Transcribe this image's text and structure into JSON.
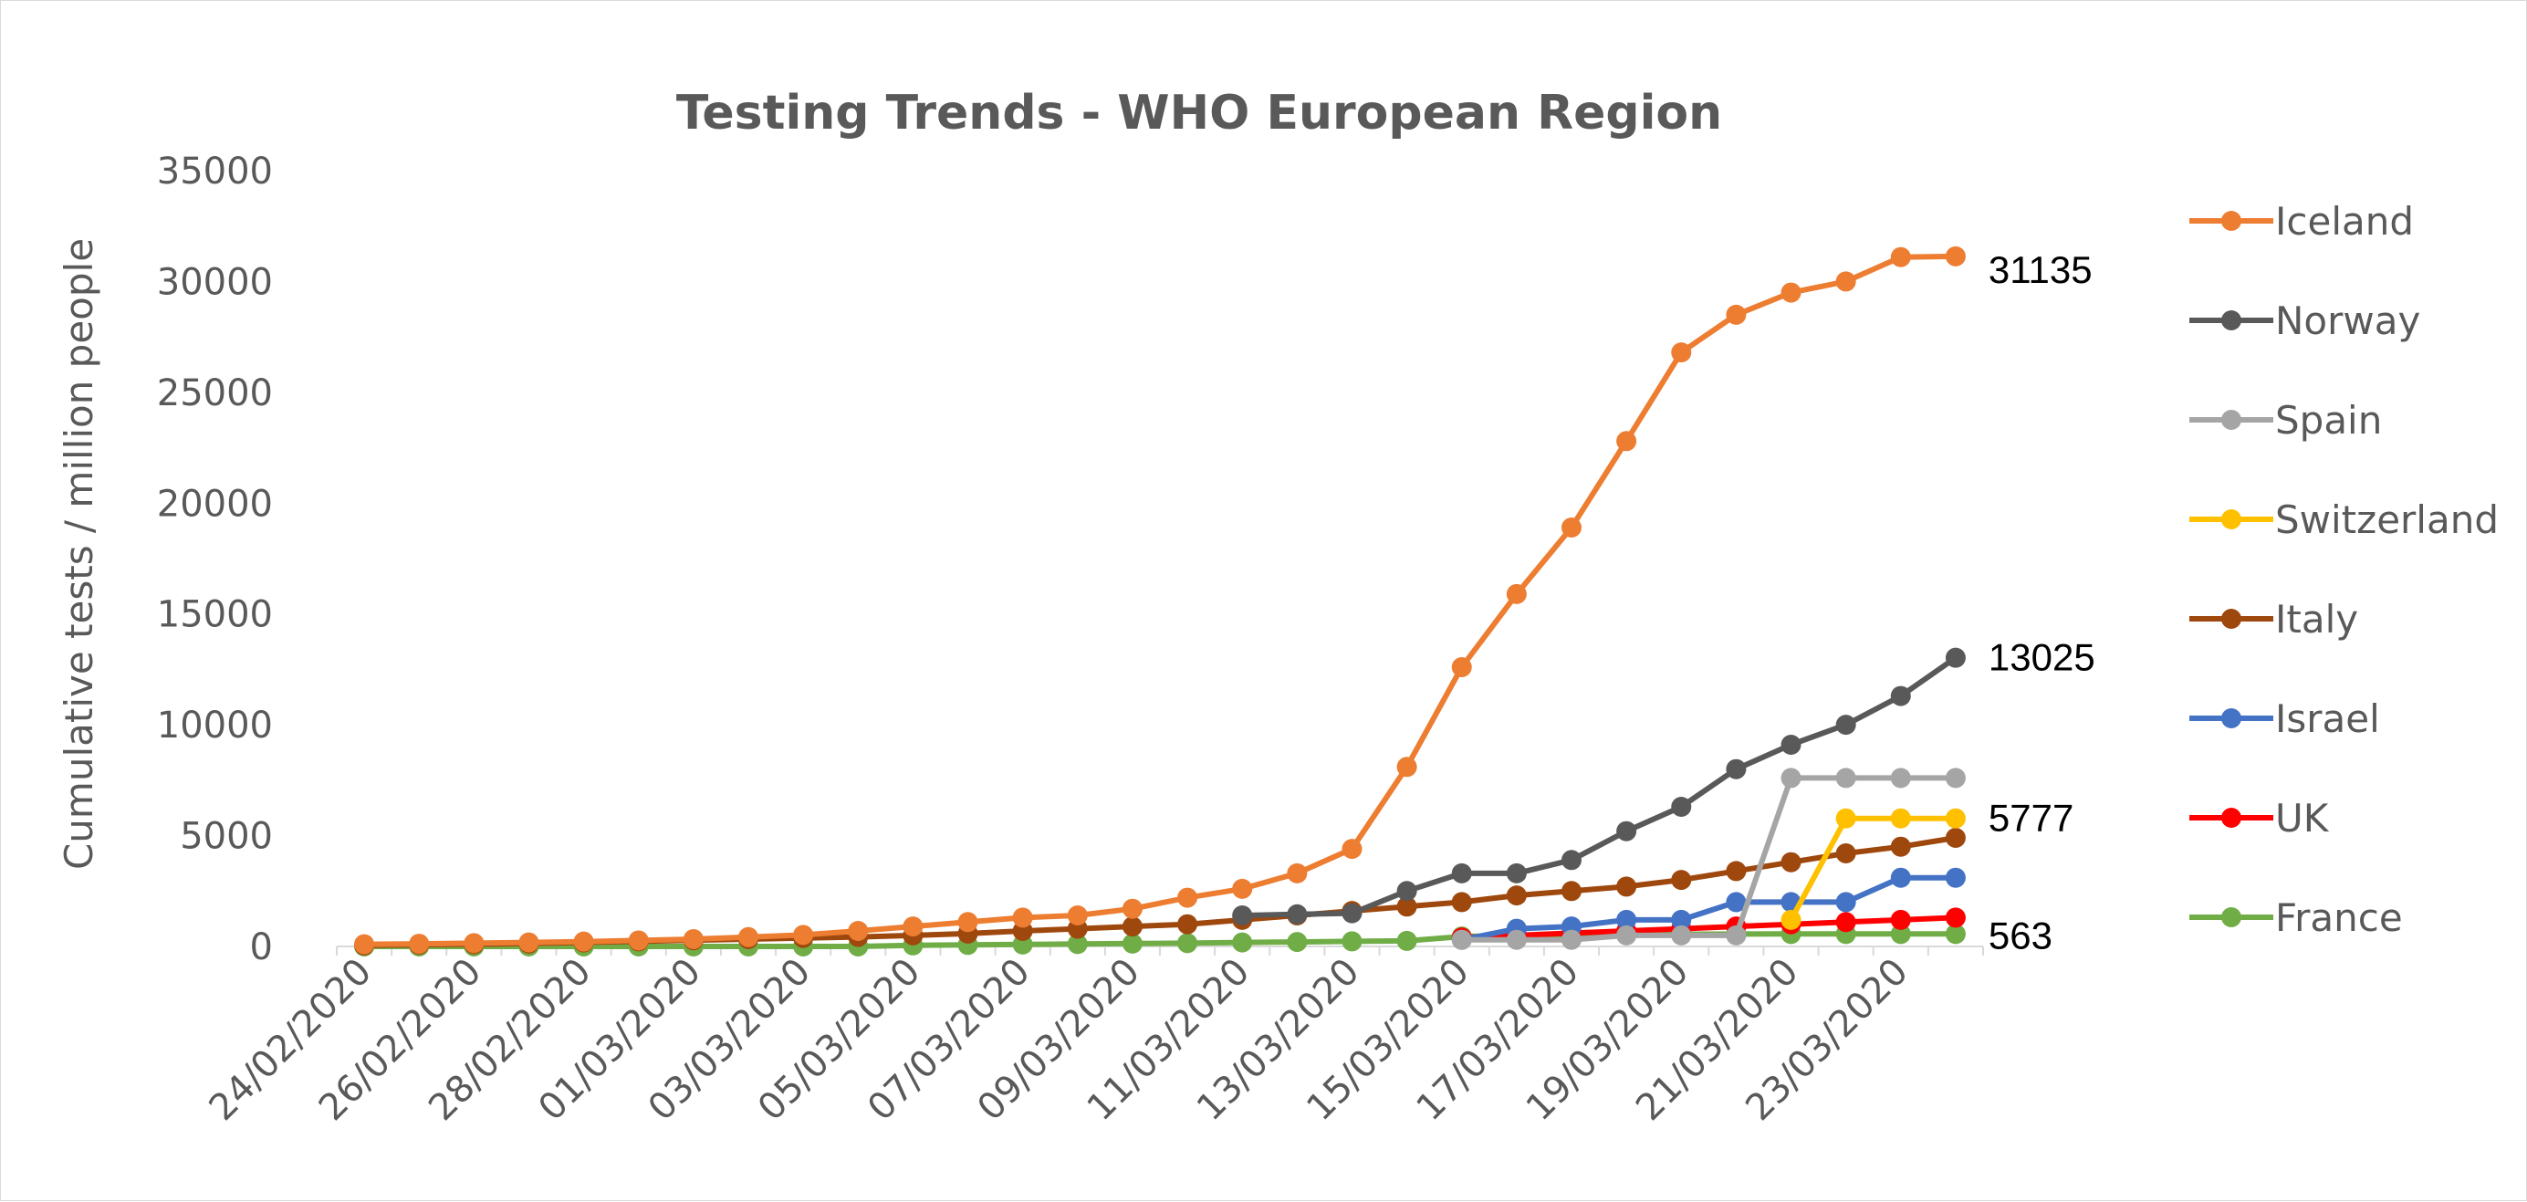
{
  "chart_data": {
    "type": "line",
    "title": "Testing Trends - WHO European Region",
    "ylabel": "Cumulative tests / million people",
    "xlabel": "",
    "ylim": [
      0,
      35000
    ],
    "yticks": [
      0,
      5000,
      10000,
      15000,
      20000,
      25000,
      30000,
      35000
    ],
    "grid": false,
    "legend_position": "right",
    "x": [
      "24/02/2020",
      "25/02/2020",
      "26/02/2020",
      "27/02/2020",
      "28/02/2020",
      "29/02/2020",
      "01/03/2020",
      "02/03/2020",
      "03/03/2020",
      "04/03/2020",
      "05/03/2020",
      "06/03/2020",
      "07/03/2020",
      "08/03/2020",
      "09/03/2020",
      "10/03/2020",
      "11/03/2020",
      "12/03/2020",
      "13/03/2020",
      "14/03/2020",
      "15/03/2020",
      "16/03/2020",
      "17/03/2020",
      "18/03/2020",
      "19/03/2020",
      "20/03/2020",
      "21/03/2020",
      "22/03/2020",
      "23/03/2020",
      "24/03/2020"
    ],
    "x_tick_labels": [
      "24/02/2020",
      "26/02/2020",
      "28/02/2020",
      "01/03/2020",
      "03/03/2020",
      "05/03/2020",
      "07/03/2020",
      "09/03/2020",
      "11/03/2020",
      "13/03/2020",
      "15/03/2020",
      "17/03/2020",
      "19/03/2020",
      "21/03/2020",
      "23/03/2020"
    ],
    "series": [
      {
        "name": "Iceland",
        "color": "#ED7D31",
        "values": [
          100,
          120,
          150,
          180,
          220,
          270,
          330,
          420,
          520,
          700,
          900,
          1100,
          1300,
          1400,
          1700,
          2200,
          2600,
          3300,
          4400,
          8100,
          12600,
          15900,
          18900,
          22800,
          26800,
          28500,
          29500,
          30000,
          31100,
          31135
        ]
      },
      {
        "name": "Norway",
        "color": "#595959",
        "values": [
          null,
          null,
          null,
          null,
          null,
          null,
          null,
          null,
          null,
          null,
          null,
          null,
          null,
          null,
          null,
          null,
          1400,
          1450,
          1500,
          2500,
          3300,
          3300,
          3900,
          5200,
          6300,
          8000,
          9100,
          10000,
          11300,
          13025
        ]
      },
      {
        "name": "Spain",
        "color": "#A5A5A5",
        "values": [
          null,
          null,
          null,
          null,
          null,
          null,
          null,
          null,
          null,
          null,
          null,
          null,
          null,
          null,
          null,
          null,
          null,
          null,
          null,
          null,
          300,
          300,
          300,
          500,
          500,
          500,
          7600,
          7600,
          7600,
          7600
        ]
      },
      {
        "name": "Switzerland",
        "color": "#FFC000",
        "values": [
          null,
          null,
          null,
          null,
          null,
          null,
          null,
          null,
          null,
          null,
          null,
          null,
          null,
          null,
          null,
          null,
          null,
          null,
          null,
          null,
          null,
          null,
          null,
          null,
          null,
          null,
          1200,
          5777,
          5777,
          5777
        ]
      },
      {
        "name": "Italy",
        "color": "#9E480E",
        "values": [
          50,
          80,
          100,
          130,
          180,
          230,
          280,
          330,
          380,
          430,
          500,
          580,
          700,
          800,
          900,
          1000,
          1200,
          1400,
          1600,
          1800,
          2000,
          2300,
          2500,
          2700,
          3000,
          3400,
          3800,
          4200,
          4500,
          4900
        ]
      },
      {
        "name": "Israel",
        "color": "#4472C4",
        "values": [
          null,
          null,
          null,
          null,
          null,
          null,
          null,
          null,
          null,
          null,
          null,
          null,
          null,
          null,
          null,
          null,
          null,
          null,
          null,
          null,
          300,
          800,
          900,
          1200,
          1200,
          2000,
          2000,
          2000,
          3100,
          3100
        ]
      },
      {
        "name": "UK",
        "color": "#FF0000",
        "values": [
          null,
          null,
          null,
          null,
          null,
          null,
          null,
          null,
          null,
          null,
          null,
          null,
          null,
          null,
          null,
          null,
          null,
          null,
          null,
          null,
          400,
          500,
          600,
          700,
          800,
          900,
          1000,
          1100,
          1200,
          1300
        ]
      },
      {
        "name": "France",
        "color": "#70AD47",
        "values": [
          0,
          0,
          0,
          0,
          0,
          0,
          0,
          0,
          0,
          0,
          50,
          70,
          90,
          110,
          130,
          150,
          180,
          200,
          230,
          250,
          450,
          500,
          520,
          540,
          550,
          560,
          563,
          563,
          563,
          563
        ]
      }
    ],
    "end_labels": [
      "31135",
      "13025",
      "5777",
      "563"
    ]
  }
}
